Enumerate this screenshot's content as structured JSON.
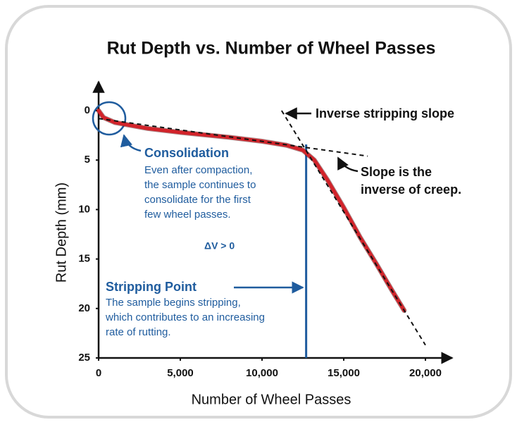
{
  "chart_data": {
    "type": "line",
    "title": "Rut Depth vs. Number of Wheel Passes",
    "x_label": "Number of Wheel Passes",
    "y_label": "Rut Depth (mm)",
    "xlim": [
      0,
      20000
    ],
    "ylim": [
      0,
      25
    ],
    "y_inverted": true,
    "xticks": [
      0,
      {
        "value": 5000,
        "label": "5,000"
      },
      {
        "value": 10000,
        "label": "10,000"
      },
      {
        "value": 15000,
        "label": "15,000"
      },
      {
        "value": 20000,
        "label": "20,000"
      }
    ],
    "yticks": [
      0,
      5,
      10,
      15,
      20,
      25
    ],
    "series": [
      {
        "color": "#d2232a",
        "x": [
          0,
          300,
          1000,
          3000,
          5000,
          8000,
          10000,
          11500,
          12500,
          13200,
          14000,
          15000,
          16000,
          17000,
          18000,
          18700
        ],
        "values": [
          0,
          0.7,
          1.2,
          1.8,
          2.2,
          2.7,
          3.1,
          3.5,
          4.0,
          5.0,
          7.0,
          9.8,
          12.8,
          15.5,
          18.3,
          20.2
        ]
      }
    ],
    "reference_lines": [
      {
        "x": [
          0,
          16470
        ],
        "values": [
          0.8,
          4.6
        ]
      },
      {
        "x": [
          11200,
          20000
        ],
        "values": [
          0,
          23.7
        ]
      }
    ],
    "stripping_point_x": 12700,
    "annotations": {
      "inverse_stripping": "Inverse stripping slope",
      "slope": [
        "Slope is the",
        "inverse of creep."
      ],
      "consolidation_title": "Consolidation",
      "consolidation_body": [
        "Even after compaction,",
        "the sample continues to",
        "consolidate for the first",
        "few wheel passes."
      ],
      "delta_v": "ΔV > 0",
      "stripping_title": "Stripping Point",
      "stripping_body": [
        "The sample begins stripping,",
        "which contributes to an increasing",
        "rate of rutting."
      ]
    }
  }
}
